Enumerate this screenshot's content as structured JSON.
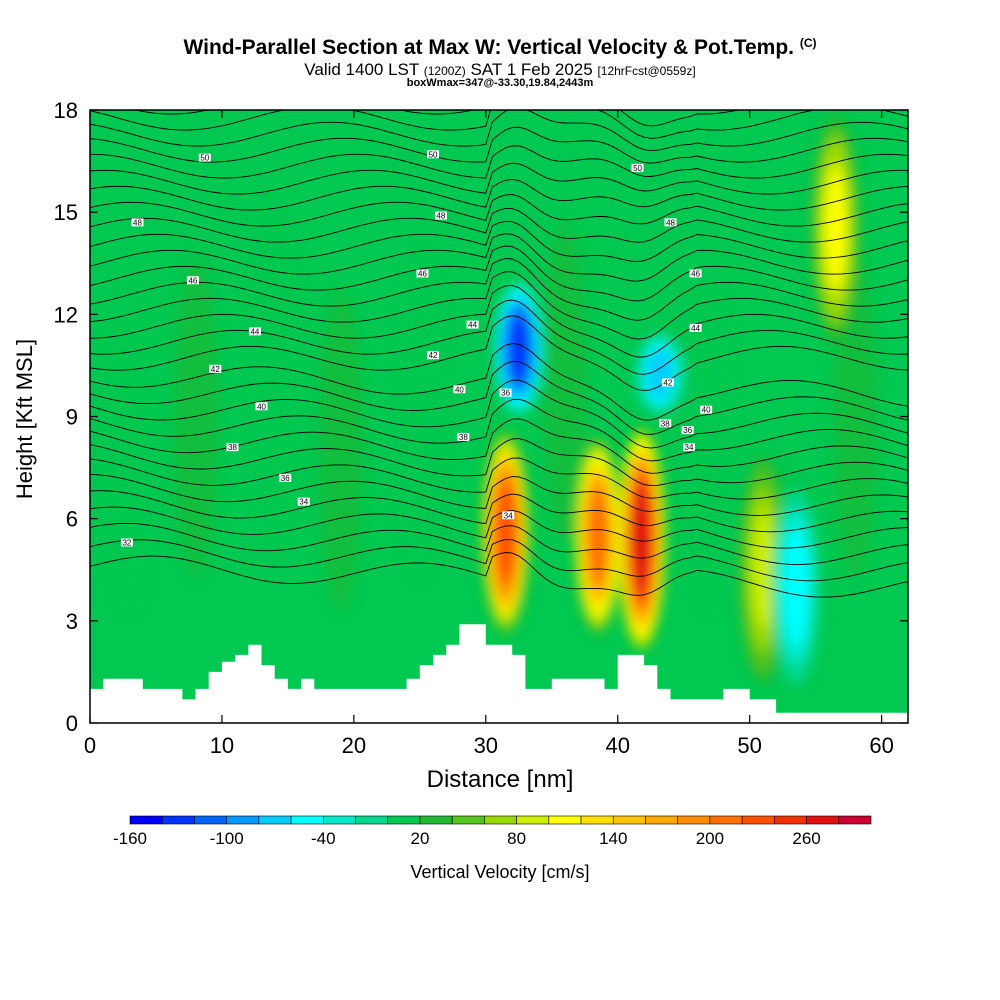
{
  "title": "Wind-Parallel Section at Max W: Vertical Velocity & Pot.Temp.",
  "copyright_mark": "(C)",
  "subtitle": {
    "part1": "Valid 1400 LST",
    "part2": "(1200Z)",
    "part3": "SAT 1 Feb 2025",
    "part4": "[12hrFcst@0559z]"
  },
  "subtitle2": "boxWmax=347@-33.30,19.84,2443m",
  "chart_data": {
    "type": "heatmap",
    "xlabel": "Distance [nm]",
    "ylabel": "Height [Kft MSL]",
    "xlim": [
      0,
      62
    ],
    "ylim": [
      0,
      18
    ],
    "x_ticks": [
      0,
      10,
      20,
      30,
      40,
      50,
      60
    ],
    "y_ticks": [
      0,
      3,
      6,
      9,
      12,
      15,
      18
    ],
    "colorbar": {
      "label": "Vertical Velocity [cm/s]",
      "tick_labels": [
        "-160",
        "-100",
        "-40",
        "20",
        "80",
        "140",
        "200",
        "260"
      ],
      "tick_values": [
        -160,
        -100,
        -40,
        20,
        80,
        140,
        200,
        260
      ],
      "bins": [
        -160,
        -140,
        -120,
        -100,
        -80,
        -60,
        -40,
        -20,
        0,
        20,
        40,
        60,
        80,
        100,
        120,
        140,
        160,
        180,
        200,
        220,
        240,
        260,
        280,
        300
      ],
      "colors": [
        "#0000ff",
        "#0033ff",
        "#0066ff",
        "#0099ff",
        "#00ccff",
        "#00ffff",
        "#00e8c8",
        "#00d890",
        "#00c850",
        "#22b832",
        "#55c41c",
        "#99d800",
        "#ccee00",
        "#ffff00",
        "#ffe000",
        "#ffc400",
        "#ffa800",
        "#ff8c00",
        "#ff7000",
        "#ff5000",
        "#f03000",
        "#e01010",
        "#cc0033"
      ]
    },
    "vertical_velocity_features": [
      {
        "kind": "updraft",
        "x_center": 31.5,
        "z_bottom": 2.5,
        "z_top": 8.7,
        "max": 230
      },
      {
        "kind": "updraft",
        "x_center": 38.5,
        "z_bottom": 2.5,
        "z_top": 8.5,
        "max": 200
      },
      {
        "kind": "updraft",
        "x_center": 41.8,
        "z_bottom": 2.0,
        "z_top": 8.8,
        "max": 260
      },
      {
        "kind": "updraft",
        "x_center": 51,
        "z_bottom": 1.0,
        "z_top": 8.0,
        "max": 90
      },
      {
        "kind": "updraft",
        "x_center": 56.5,
        "z_bottom": 11,
        "z_top": 18,
        "max": 100
      },
      {
        "kind": "downdraft",
        "x_center": 32.5,
        "z_bottom": 9,
        "z_top": 13,
        "min": -130
      },
      {
        "kind": "downdraft",
        "x_center": 43.2,
        "z_bottom": 9,
        "z_top": 11.5,
        "min": -80
      },
      {
        "kind": "downdraft",
        "x_center": 53.5,
        "z_bottom": 1,
        "z_top": 7,
        "min": -60
      }
    ],
    "terrain_kft": {
      "x": [
        0,
        1,
        2,
        3,
        4,
        5,
        6,
        7,
        8,
        9,
        10,
        11,
        12,
        13,
        14,
        15,
        16,
        17,
        18,
        19,
        20,
        21,
        22,
        23,
        24,
        25,
        26,
        27,
        28,
        29,
        30,
        31,
        32,
        33,
        34,
        35,
        36,
        37,
        38,
        39,
        40,
        41,
        42,
        43,
        44,
        45,
        46,
        47,
        48,
        49,
        50,
        51,
        52,
        53,
        54,
        55,
        56,
        57,
        58,
        59,
        60,
        61,
        62
      ],
      "z": [
        1.0,
        1.3,
        1.3,
        1.3,
        1.0,
        1.0,
        1.0,
        0.7,
        1.0,
        1.5,
        1.8,
        2.0,
        2.3,
        1.7,
        1.3,
        1.0,
        1.3,
        1.0,
        1.0,
        1.0,
        1.0,
        1.0,
        1.0,
        1.0,
        1.3,
        1.7,
        2.0,
        2.3,
        2.9,
        2.9,
        2.3,
        2.3,
        2.0,
        1.0,
        1.0,
        1.3,
        1.3,
        1.3,
        1.3,
        1.0,
        2.0,
        2.0,
        1.7,
        1.0,
        0.7,
        0.7,
        0.7,
        0.7,
        1.0,
        1.0,
        0.7,
        0.7,
        0.3,
        0.3,
        0.3,
        0.3,
        0.3,
        0.3,
        0.3,
        0.3,
        0.3,
        0.3,
        0.3
      ]
    },
    "potential_temperature_labels": [
      {
        "text": "32",
        "x": 2.8,
        "z": 5.3
      },
      {
        "text": "34",
        "x": 16.2,
        "z": 6.5
      },
      {
        "text": "36",
        "x": 14.8,
        "z": 7.2
      },
      {
        "text": "38",
        "x": 10.8,
        "z": 8.1
      },
      {
        "text": "40",
        "x": 13.0,
        "z": 9.3
      },
      {
        "text": "42",
        "x": 9.5,
        "z": 10.4
      },
      {
        "text": "44",
        "x": 12.5,
        "z": 11.5
      },
      {
        "text": "46",
        "x": 7.8,
        "z": 13.0
      },
      {
        "text": "48",
        "x": 3.6,
        "z": 14.7
      },
      {
        "text": "50",
        "x": 8.7,
        "z": 16.6
      },
      {
        "text": "34",
        "x": 31.7,
        "z": 6.1
      },
      {
        "text": "38",
        "x": 28.3,
        "z": 8.4
      },
      {
        "text": "40",
        "x": 28.0,
        "z": 9.8
      },
      {
        "text": "36",
        "x": 31.5,
        "z": 9.7
      },
      {
        "text": "42",
        "x": 26.0,
        "z": 10.8
      },
      {
        "text": "44",
        "x": 29.0,
        "z": 11.7
      },
      {
        "text": "46",
        "x": 25.2,
        "z": 13.2
      },
      {
        "text": "48",
        "x": 26.6,
        "z": 14.9
      },
      {
        "text": "50",
        "x": 26.0,
        "z": 16.7
      },
      {
        "text": "42",
        "x": 43.8,
        "z": 10.0
      },
      {
        "text": "40",
        "x": 46.7,
        "z": 9.2
      },
      {
        "text": "38",
        "x": 43.6,
        "z": 8.8
      },
      {
        "text": "36",
        "x": 45.3,
        "z": 8.6
      },
      {
        "text": "34",
        "x": 45.4,
        "z": 8.1
      },
      {
        "text": "44",
        "x": 45.9,
        "z": 11.6
      },
      {
        "text": "46",
        "x": 45.9,
        "z": 13.2
      },
      {
        "text": "48",
        "x": 44.0,
        "z": 14.7
      },
      {
        "text": "50",
        "x": 41.5,
        "z": 16.3
      }
    ]
  }
}
